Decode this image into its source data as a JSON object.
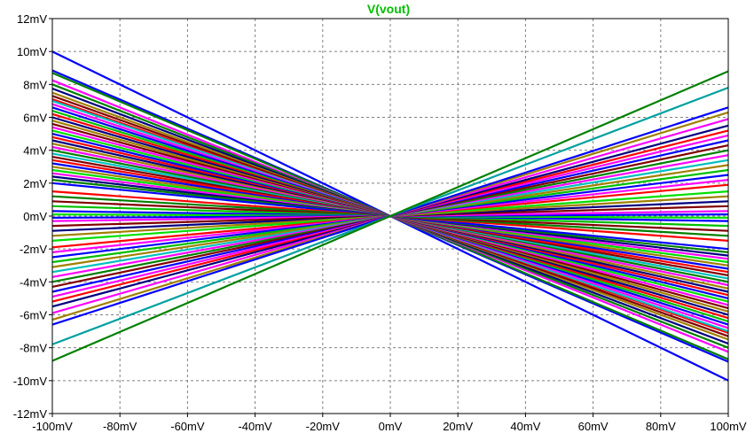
{
  "chart_data": {
    "type": "line",
    "title": "V(vout)",
    "title_color": "#00c000",
    "xlabel": "",
    "ylabel": "",
    "x_unit": "mV",
    "y_unit": "mV",
    "xlim": [
      -100,
      100
    ],
    "ylim": [
      -12,
      12
    ],
    "x_ticks": [
      "-100mV",
      "-80mV",
      "-60mV",
      "-40mV",
      "-20mV",
      "0mV",
      "20mV",
      "40mV",
      "60mV",
      "80mV",
      "100mV"
    ],
    "y_ticks": [
      "12mV",
      "10mV",
      "8mV",
      "6mV",
      "4mV",
      "2mV",
      "0mV",
      "-2mV",
      "-4mV",
      "-6mV",
      "-8mV",
      "-10mV",
      "-12mV"
    ],
    "grid": true,
    "grid_style": "dashed",
    "x": [
      -100,
      100
    ],
    "series": [
      {
        "color": "#0000ff",
        "values": [
          10.0,
          -10.0
        ]
      },
      {
        "color": "#0000ff",
        "values": [
          8.85,
          -8.85
        ]
      },
      {
        "color": "#008000",
        "values": [
          8.7,
          -8.7
        ]
      },
      {
        "color": "#ff00ff",
        "values": [
          8.25,
          -8.25
        ]
      },
      {
        "color": "#008000",
        "values": [
          8.0,
          -8.0
        ]
      },
      {
        "color": "#000080",
        "values": [
          7.75,
          -7.75
        ]
      },
      {
        "color": "#a08000",
        "values": [
          7.5,
          -7.5
        ]
      },
      {
        "color": "#800000",
        "values": [
          7.3,
          -7.3
        ]
      },
      {
        "color": "#ff0000",
        "values": [
          7.1,
          -7.1
        ]
      },
      {
        "color": "#00c0c0",
        "values": [
          7.0,
          -7.0
        ]
      },
      {
        "color": "#ff00ff",
        "values": [
          6.8,
          -6.8
        ]
      },
      {
        "color": "#0000ff",
        "values": [
          6.6,
          -6.6
        ]
      },
      {
        "color": "#00c000",
        "values": [
          6.4,
          -6.4
        ]
      },
      {
        "color": "#ff0000",
        "values": [
          6.2,
          -6.2
        ]
      },
      {
        "color": "#000080",
        "values": [
          6.0,
          -6.0
        ]
      },
      {
        "color": "#a08000",
        "values": [
          5.8,
          -5.8
        ]
      },
      {
        "color": "#800000",
        "values": [
          5.6,
          -5.6
        ]
      },
      {
        "color": "#ff00ff",
        "values": [
          5.4,
          -5.4
        ]
      },
      {
        "color": "#00e000",
        "values": [
          5.2,
          -5.2
        ]
      },
      {
        "color": "#0000ff",
        "values": [
          5.0,
          -5.0
        ]
      },
      {
        "color": "#ff0000",
        "values": [
          4.8,
          -4.8
        ]
      },
      {
        "color": "#000080",
        "values": [
          4.6,
          -4.6
        ]
      },
      {
        "color": "#a08000",
        "values": [
          4.4,
          -4.4
        ]
      },
      {
        "color": "#ff00ff",
        "values": [
          4.2,
          -4.2
        ]
      },
      {
        "color": "#008000",
        "values": [
          4.0,
          -4.0
        ]
      },
      {
        "color": "#00c0c0",
        "values": [
          3.8,
          -3.8
        ]
      },
      {
        "color": "#800000",
        "values": [
          3.6,
          -3.6
        ]
      },
      {
        "color": "#ff0000",
        "values": [
          3.4,
          -3.4
        ]
      },
      {
        "color": "#0000ff",
        "values": [
          3.2,
          -3.2
        ]
      },
      {
        "color": "#a08000",
        "values": [
          3.0,
          -3.0
        ]
      },
      {
        "color": "#00e000",
        "values": [
          2.8,
          -2.8
        ]
      },
      {
        "color": "#ff00ff",
        "values": [
          2.6,
          -2.6
        ]
      },
      {
        "color": "#000080",
        "values": [
          2.4,
          -2.4
        ]
      },
      {
        "color": "#008000",
        "values": [
          2.2,
          -2.2
        ]
      },
      {
        "color": "#0000ff",
        "values": [
          2.0,
          -2.0
        ]
      },
      {
        "color": "#ff0000",
        "values": [
          1.5,
          -1.5
        ]
      },
      {
        "color": "#008000",
        "values": [
          1.2,
          -1.2
        ]
      },
      {
        "color": "#800000",
        "values": [
          0.9,
          -0.9
        ]
      },
      {
        "color": "#00c000",
        "values": [
          0.6,
          -0.6
        ]
      },
      {
        "color": "#0000ff",
        "values": [
          0.3,
          -0.3
        ]
      },
      {
        "color": "#00e000",
        "values": [
          0.1,
          -0.1
        ]
      },
      {
        "color": "#0000ff",
        "values": [
          -0.1,
          0.1
        ]
      },
      {
        "color": "#ff00ff",
        "values": [
          -0.3,
          0.3
        ]
      },
      {
        "color": "#800000",
        "values": [
          -0.6,
          0.6
        ]
      },
      {
        "color": "#000080",
        "values": [
          -0.9,
          0.9
        ]
      },
      {
        "color": "#a08000",
        "values": [
          -1.2,
          1.2
        ]
      },
      {
        "color": "#00e000",
        "values": [
          -1.5,
          1.5
        ]
      },
      {
        "color": "#ff0000",
        "values": [
          -1.9,
          1.9
        ]
      },
      {
        "color": "#ff00ff",
        "values": [
          -2.2,
          2.2
        ]
      },
      {
        "color": "#0000ff",
        "values": [
          -2.5,
          2.5
        ]
      },
      {
        "color": "#00c000",
        "values": [
          -2.8,
          2.8
        ]
      },
      {
        "color": "#a08000",
        "values": [
          -3.1,
          3.1
        ]
      },
      {
        "color": "#00c0c0",
        "values": [
          -3.4,
          3.4
        ]
      },
      {
        "color": "#ff00ff",
        "values": [
          -3.7,
          3.7
        ]
      },
      {
        "color": "#008000",
        "values": [
          -4.0,
          4.0
        ]
      },
      {
        "color": "#800000",
        "values": [
          -4.3,
          4.3
        ]
      },
      {
        "color": "#0000ff",
        "values": [
          -4.6,
          4.6
        ]
      },
      {
        "color": "#ff00ff",
        "values": [
          -4.9,
          4.9
        ]
      },
      {
        "color": "#ff0000",
        "values": [
          -5.2,
          5.2
        ]
      },
      {
        "color": "#000080",
        "values": [
          -5.5,
          5.5
        ]
      },
      {
        "color": "#ff00ff",
        "values": [
          -5.9,
          5.9
        ]
      },
      {
        "color": "#a08000",
        "values": [
          -6.3,
          6.3
        ]
      },
      {
        "color": "#0000ff",
        "values": [
          -6.6,
          6.6
        ]
      },
      {
        "color": "#00a0a0",
        "values": [
          -7.8,
          7.8
        ]
      },
      {
        "color": "#008000",
        "values": [
          -8.8,
          8.8
        ]
      }
    ]
  }
}
